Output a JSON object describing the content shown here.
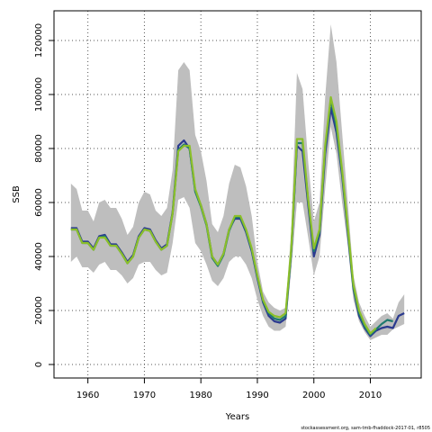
{
  "chart_data": {
    "type": "line",
    "title": "",
    "xlabel": "Years",
    "ylabel": "SSB",
    "xlim": [
      1954,
      2019
    ],
    "ylim": [
      -5000,
      131000
    ],
    "xticks": [
      1960,
      1970,
      1980,
      1990,
      2000,
      2010
    ],
    "yticks": [
      0,
      20000,
      40000,
      60000,
      80000,
      100000,
      120000
    ],
    "grid": true,
    "legend": "none",
    "footer": "stockassessment.org, sam-tmb-fhaddock-2017-01, r8505",
    "band": {
      "x": [
        1957,
        1958,
        1959,
        1960,
        1961,
        1962,
        1963,
        1964,
        1965,
        1966,
        1967,
        1968,
        1969,
        1970,
        1971,
        1972,
        1973,
        1974,
        1975,
        1976,
        1977,
        1978,
        1979,
        1980,
        1981,
        1982,
        1983,
        1984,
        1985,
        1986,
        1987,
        1988,
        1989,
        1990,
        1991,
        1992,
        1993,
        1994,
        1995,
        1996,
        1997,
        1998,
        1999,
        2000,
        2001,
        2002,
        2003,
        2004,
        2005,
        2006,
        2007,
        2008,
        2009,
        2010,
        2011,
        2012,
        2013,
        2014,
        2015,
        2016
      ],
      "lower": [
        38000,
        40000,
        36000,
        36000,
        34000,
        37000,
        38000,
        35000,
        35000,
        33000,
        30000,
        32000,
        37000,
        38000,
        38000,
        35000,
        33000,
        34000,
        45000,
        61000,
        62000,
        58000,
        45000,
        42000,
        37000,
        31000,
        29000,
        32000,
        38000,
        40000,
        40000,
        37000,
        32000,
        24000,
        18000,
        14000,
        12500,
        12500,
        14000,
        35000,
        60000,
        60000,
        47000,
        33000,
        40000,
        65000,
        88000,
        78000,
        60000,
        44000,
        24000,
        16000,
        12000,
        9000,
        10000,
        11000,
        11000,
        13000,
        14000,
        15000
      ],
      "upper": [
        67000,
        65000,
        57000,
        57000,
        53000,
        60000,
        61000,
        58000,
        58000,
        54000,
        48000,
        51000,
        60000,
        64000,
        63000,
        57000,
        55000,
        58000,
        72000,
        109000,
        112000,
        109000,
        85000,
        79000,
        68000,
        52000,
        49000,
        55000,
        67000,
        74000,
        73000,
        66000,
        55000,
        38000,
        27000,
        23000,
        21000,
        20000,
        21000,
        50000,
        108000,
        102000,
        75000,
        53000,
        60000,
        99000,
        126000,
        112000,
        86000,
        60000,
        33000,
        23000,
        18000,
        14000,
        16000,
        18000,
        19000,
        17000,
        23000,
        26000
      ]
    },
    "series": [
      {
        "color": "#2b3a8f",
        "x": [
          1957,
          1958,
          1959,
          1960,
          1961,
          1962,
          1963,
          1964,
          1965,
          1966,
          1967,
          1968,
          1969,
          1970,
          1971,
          1972,
          1973,
          1974,
          1975,
          1976,
          1977,
          1978,
          1979,
          1980,
          1981,
          1982,
          1983,
          1984,
          1985,
          1986,
          1987,
          1988,
          1989,
          1990,
          1991,
          1992,
          1993,
          1994,
          1995,
          1996,
          1997,
          1998,
          1999,
          2000,
          2001,
          2002,
          2003,
          2004,
          2005,
          2006,
          2007,
          2008,
          2009,
          2010,
          2011,
          2012,
          2013,
          2014,
          2015,
          2016
        ],
        "values": [
          50500,
          50500,
          45500,
          45500,
          43000,
          47500,
          48000,
          44500,
          44500,
          41500,
          38000,
          40500,
          47500,
          50500,
          50000,
          46000,
          43000,
          44500,
          56500,
          81000,
          83000,
          80000,
          64500,
          59000,
          52000,
          40000,
          37000,
          41000,
          50000,
          54000,
          54000,
          49000,
          42000,
          32000,
          23000,
          18000,
          16000,
          15500,
          17000,
          42000,
          81000,
          79000,
          59000,
          40000,
          48000,
          78000,
          95000,
          86000,
          70000,
          49000,
          28000,
          18000,
          13500,
          10500,
          12500,
          13500,
          14000,
          13500,
          18000,
          19000
        ]
      },
      {
        "color": "#1f7a6f",
        "x": [
          1957,
          1958,
          1959,
          1960,
          1961,
          1962,
          1963,
          1964,
          1965,
          1966,
          1967,
          1968,
          1969,
          1970,
          1971,
          1972,
          1973,
          1974,
          1975,
          1976,
          1977,
          1978,
          1979,
          1980,
          1981,
          1982,
          1983,
          1984,
          1985,
          1986,
          1987,
          1988,
          1989,
          1990,
          1991,
          1992,
          1993,
          1994,
          1995,
          1996,
          1997,
          1998,
          1999,
          2000,
          2001,
          2002,
          2003,
          2004,
          2005,
          2006,
          2007,
          2008,
          2009,
          2010,
          2011,
          2012,
          2013,
          2014
        ],
        "values": [
          50000,
          50000,
          45000,
          45000,
          42500,
          47000,
          47500,
          44000,
          44000,
          41000,
          37500,
          40000,
          47000,
          50000,
          49500,
          45500,
          42500,
          44000,
          56000,
          79500,
          81500,
          80000,
          64000,
          58500,
          51500,
          39500,
          36500,
          40500,
          49500,
          54500,
          54500,
          49500,
          42500,
          32500,
          23500,
          19000,
          17000,
          16500,
          18000,
          42000,
          82000,
          82000,
          60500,
          42000,
          49000,
          80000,
          98000,
          88000,
          71000,
          50000,
          28500,
          19000,
          14000,
          11000,
          13000,
          15000,
          16500,
          16000
        ]
      },
      {
        "color": "#8bbf2a",
        "x": [
          1957,
          1958,
          1959,
          1960,
          1961,
          1962,
          1963,
          1964,
          1965,
          1966,
          1967,
          1968,
          1969,
          1970,
          1971,
          1972,
          1973,
          1974,
          1975,
          1976,
          1977,
          1978,
          1979,
          1980,
          1981,
          1982,
          1983,
          1984,
          1985,
          1986,
          1987,
          1988,
          1989,
          1990,
          1991,
          1992,
          1993,
          1994,
          1995,
          1996,
          1997,
          1998,
          1999,
          2000,
          2001,
          2002,
          2003,
          2004,
          2005,
          2006,
          2007,
          2008,
          2009,
          2010,
          2011
        ],
        "values": [
          50000,
          50000,
          45000,
          45000,
          42500,
          47000,
          47000,
          44000,
          44000,
          41000,
          37500,
          40000,
          47000,
          50000,
          49500,
          45500,
          42500,
          44000,
          56000,
          79000,
          81000,
          81000,
          65000,
          59000,
          52000,
          40000,
          37000,
          41000,
          50000,
          55000,
          55000,
          50000,
          43000,
          33000,
          24000,
          19500,
          18000,
          17500,
          19000,
          43000,
          83500,
          83500,
          61000,
          43000,
          50000,
          81000,
          99000,
          90000,
          72000,
          51000,
          29500,
          20000,
          15000,
          11500,
          13500
        ]
      }
    ]
  }
}
